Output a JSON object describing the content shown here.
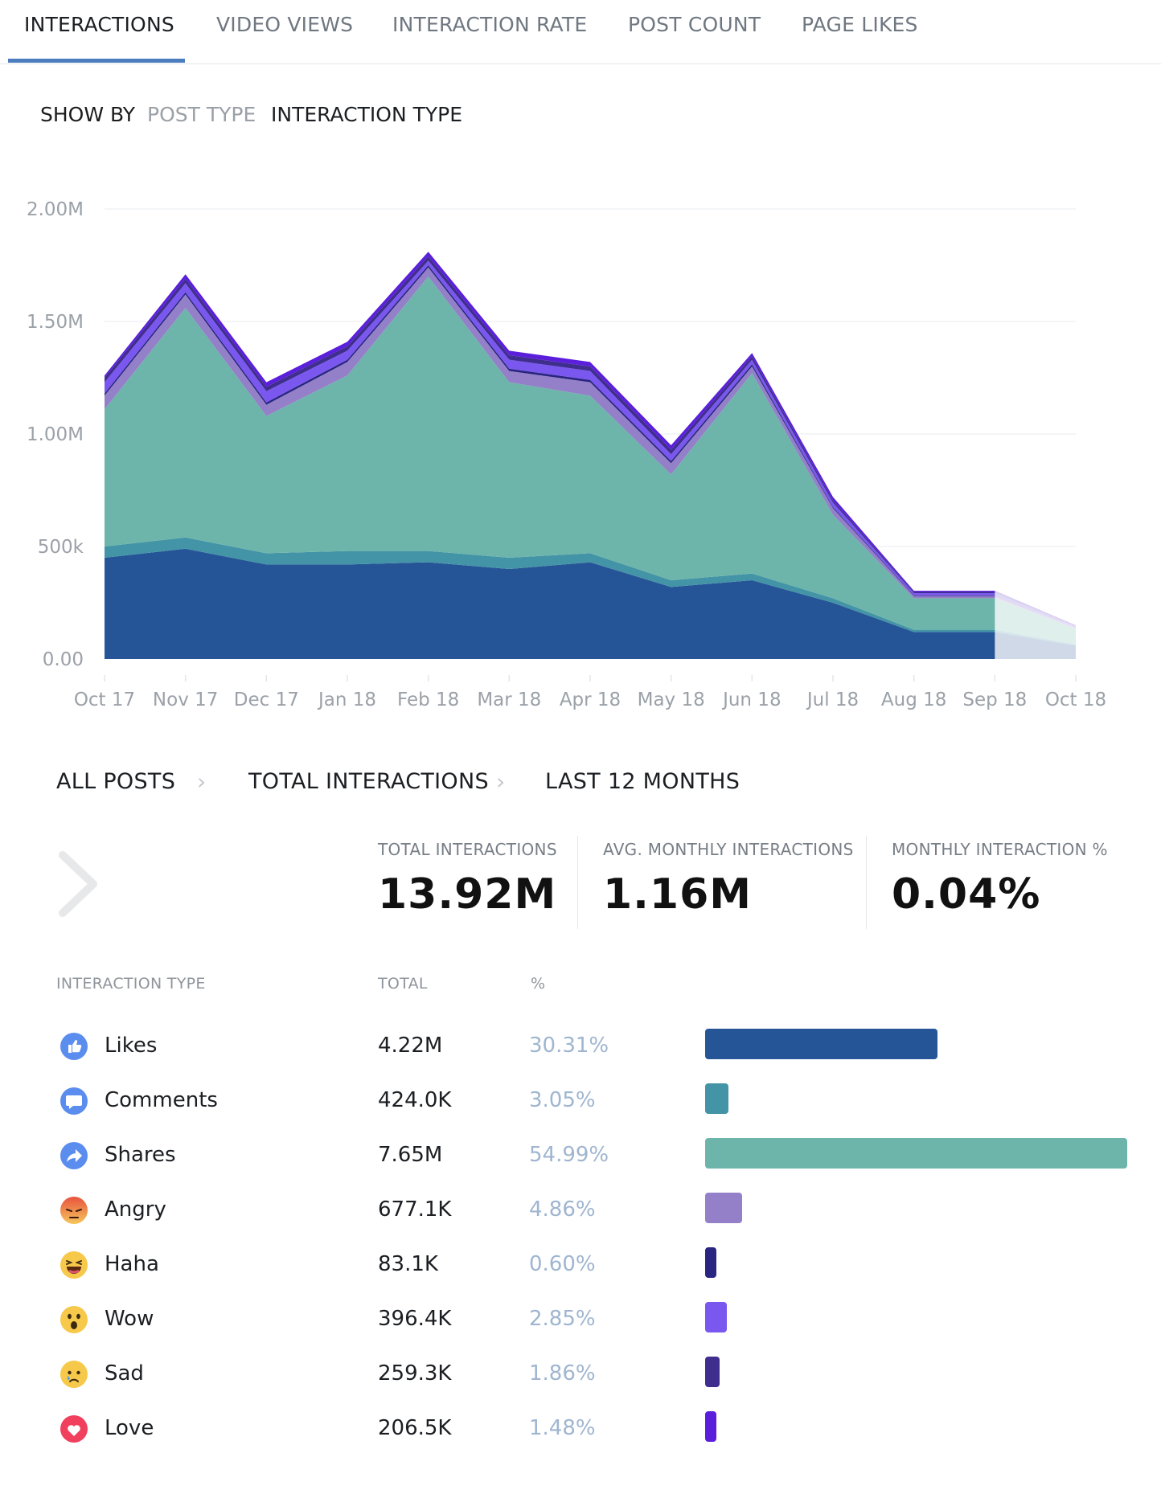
{
  "tabs": [
    {
      "label": "INTERACTIONS",
      "active": true
    },
    {
      "label": "VIDEO VIEWS",
      "active": false
    },
    {
      "label": "INTERACTION RATE",
      "active": false
    },
    {
      "label": "POST COUNT",
      "active": false
    },
    {
      "label": "PAGE LIKES",
      "active": false
    }
  ],
  "show_by": {
    "label": "SHOW BY",
    "options": [
      "POST TYPE",
      "INTERACTION TYPE"
    ],
    "selected": "INTERACTION TYPE"
  },
  "chart_data": {
    "type": "area",
    "stacked": true,
    "categories": [
      "Oct 17",
      "Nov 17",
      "Dec 17",
      "Jan 18",
      "Feb 18",
      "Mar 18",
      "Apr 18",
      "May 18",
      "Jun 18",
      "Jul 18",
      "Aug 18",
      "Sep 18",
      "Oct 18"
    ],
    "y_ticks": [
      "0.00",
      "500k",
      "1.00M",
      "1.50M",
      "2.00M"
    ],
    "ylim": [
      0,
      2000000
    ],
    "grid": true,
    "last_point_partial": true,
    "series": [
      {
        "name": "Likes",
        "color": "#265597",
        "values": [
          450000,
          490000,
          420000,
          420000,
          430000,
          400000,
          430000,
          320000,
          350000,
          250000,
          120000,
          120000,
          60000
        ]
      },
      {
        "name": "Comments",
        "color": "#4394a6",
        "values": [
          50000,
          50000,
          50000,
          60000,
          50000,
          50000,
          40000,
          30000,
          30000,
          20000,
          10000,
          10000,
          5000
        ]
      },
      {
        "name": "Shares",
        "color": "#6db5aa",
        "values": [
          610000,
          1020000,
          610000,
          780000,
          1220000,
          780000,
          700000,
          470000,
          890000,
          370000,
          140000,
          140000,
          70000
        ]
      },
      {
        "name": "Angry",
        "color": "#9380c8",
        "values": [
          60000,
          60000,
          50000,
          60000,
          40000,
          50000,
          60000,
          50000,
          30000,
          30000,
          10000,
          10000,
          5000
        ]
      },
      {
        "name": "Haha",
        "color": "#2a2580",
        "values": [
          10000,
          10000,
          10000,
          10000,
          10000,
          10000,
          10000,
          10000,
          10000,
          5000,
          3000,
          3000,
          1000
        ]
      },
      {
        "name": "Wow",
        "color": "#7a57ee",
        "values": [
          50000,
          40000,
          50000,
          40000,
          20000,
          40000,
          40000,
          30000,
          20000,
          20000,
          10000,
          10000,
          4000
        ]
      },
      {
        "name": "Sad",
        "color": "#3f2e8e",
        "values": [
          20000,
          20000,
          20000,
          20000,
          20000,
          20000,
          20000,
          20000,
          15000,
          10000,
          5000,
          5000,
          2000
        ]
      },
      {
        "name": "Love",
        "color": "#5b1fdb",
        "values": [
          10000,
          20000,
          20000,
          20000,
          20000,
          20000,
          20000,
          20000,
          15000,
          15000,
          5000,
          5000,
          2000
        ]
      }
    ]
  },
  "breadcrumb": [
    "ALL POSTS",
    "TOTAL INTERACTIONS",
    "LAST 12 MONTHS"
  ],
  "summary": [
    {
      "label": "TOTAL INTERACTIONS",
      "value": "13.92M"
    },
    {
      "label": "AVG. MONTHLY INTERACTIONS",
      "value": "1.16M"
    },
    {
      "label": "MONTHLY INTERACTION %",
      "value": "0.04%"
    }
  ],
  "table": {
    "headers": {
      "type": "INTERACTION TYPE",
      "total": "TOTAL",
      "pct": "%"
    },
    "rows": [
      {
        "name": "Likes",
        "total": "4.22M",
        "pct": "30.31%",
        "share": 0.3031,
        "color": "#265597",
        "icon": "like-icon"
      },
      {
        "name": "Comments",
        "total": "424.0K",
        "pct": "3.05%",
        "share": 0.0305,
        "color": "#4394a6",
        "icon": "comment-icon"
      },
      {
        "name": "Shares",
        "total": "7.65M",
        "pct": "54.99%",
        "share": 0.5499,
        "color": "#6db5aa",
        "icon": "share-icon"
      },
      {
        "name": "Angry",
        "total": "677.1K",
        "pct": "4.86%",
        "share": 0.0486,
        "color": "#9380c8",
        "icon": "angry-icon"
      },
      {
        "name": "Haha",
        "total": "83.1K",
        "pct": "0.60%",
        "share": 0.006,
        "color": "#2a2580",
        "icon": "haha-icon"
      },
      {
        "name": "Wow",
        "total": "396.4K",
        "pct": "2.85%",
        "share": 0.0285,
        "color": "#7a57ee",
        "icon": "wow-icon"
      },
      {
        "name": "Sad",
        "total": "259.3K",
        "pct": "1.86%",
        "share": 0.0186,
        "color": "#3f2e8e",
        "icon": "sad-icon"
      },
      {
        "name": "Love",
        "total": "206.5K",
        "pct": "1.48%",
        "share": 0.0148,
        "color": "#5b1fdb",
        "icon": "love-icon"
      }
    ]
  }
}
